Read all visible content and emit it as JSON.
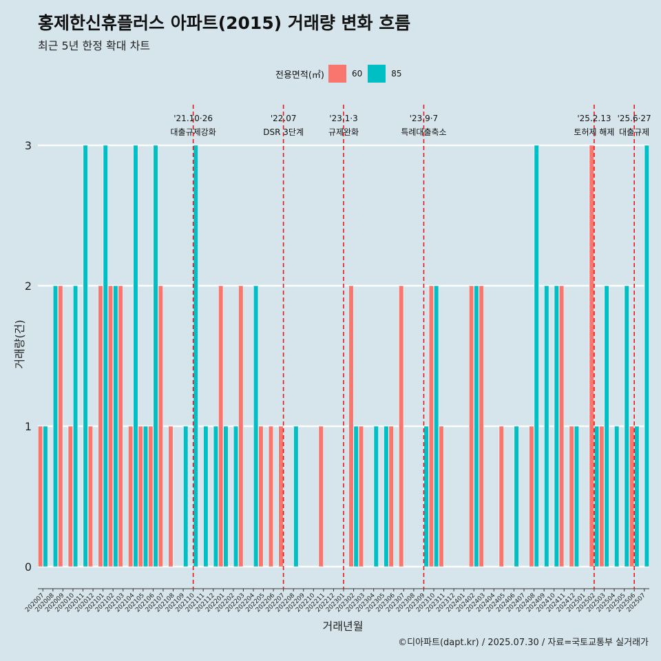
{
  "chart_data": {
    "type": "bar",
    "title": "홍제한신휴플러스 아파트(2015) 거래량 변화 흐름",
    "subtitle": "최근 5년 한정 확대 차트",
    "xlabel": "거래년월",
    "ylabel": "거래량(건)",
    "ylim": [
      0,
      3
    ],
    "yticks": [
      0,
      1,
      2,
      3
    ],
    "legend": {
      "title": "전용면적(㎡)",
      "position": "top"
    },
    "categories": [
      "202007",
      "202008",
      "202009",
      "202010",
      "202011",
      "202012",
      "202101",
      "202102",
      "202103",
      "202104",
      "202105",
      "202106",
      "202107",
      "202108",
      "202109",
      "202110",
      "202111",
      "202112",
      "202201",
      "202202",
      "202203",
      "202204",
      "202205",
      "202206",
      "202207",
      "202208",
      "202209",
      "202210",
      "202211",
      "202212",
      "202301",
      "202302",
      "202303",
      "202304",
      "202305",
      "202306",
      "202307",
      "202308",
      "202309",
      "202310",
      "202311",
      "202312",
      "202401",
      "202402",
      "202403",
      "202404",
      "202405",
      "202406",
      "202407",
      "202408",
      "202409",
      "202410",
      "202411",
      "202412",
      "202501",
      "202502",
      "202503",
      "202504",
      "202505",
      "202506",
      "202507"
    ],
    "series": [
      {
        "name": "60",
        "color": "#F8766D",
        "values": [
          1,
          0,
          2,
          1,
          0,
          1,
          2,
          2,
          2,
          1,
          1,
          1,
          2,
          1,
          0,
          0,
          0,
          0,
          2,
          0,
          2,
          0,
          1,
          1,
          1,
          0,
          0,
          0,
          1,
          0,
          0,
          2,
          1,
          0,
          0,
          1,
          2,
          0,
          0,
          2,
          1,
          0,
          0,
          2,
          2,
          0,
          1,
          0,
          0,
          1,
          0,
          0,
          2,
          1,
          0,
          3,
          1,
          0,
          0,
          1,
          0
        ]
      },
      {
        "name": "85",
        "color": "#00BFC4",
        "values": [
          1,
          2,
          0,
          2,
          3,
          0,
          3,
          2,
          0,
          3,
          1,
          3,
          0,
          0,
          1,
          3,
          1,
          1,
          1,
          1,
          0,
          2,
          0,
          0,
          0,
          1,
          0,
          0,
          0,
          0,
          0,
          1,
          0,
          1,
          1,
          0,
          0,
          0,
          1,
          2,
          0,
          0,
          0,
          2,
          0,
          0,
          0,
          1,
          0,
          3,
          2,
          2,
          0,
          1,
          0,
          1,
          2,
          1,
          2,
          1,
          3
        ]
      }
    ],
    "annotations": [
      {
        "x": "202110",
        "date": "'21.10·26",
        "label": "대출규제강화"
      },
      {
        "x": "202207",
        "date": "'22.07",
        "label": "DSR 3단계"
      },
      {
        "x": "202301",
        "date": "'23.1·3",
        "label": "규제완화"
      },
      {
        "x": "202309",
        "date": "'23.9·7",
        "label": "특례대출축소"
      },
      {
        "x": "202502",
        "date": "'25.2.13",
        "label": "토허제 해제"
      },
      {
        "x": "202506",
        "date": "'25.6·27",
        "label": "대출규제"
      }
    ]
  },
  "caption": "©디아파트(dapt.kr) / 2025.07.30 / 자료=국토교통부 실거래가"
}
